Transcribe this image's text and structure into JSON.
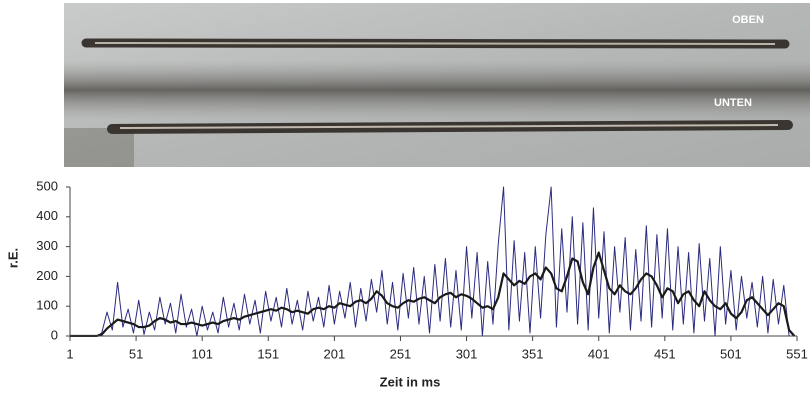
{
  "photo": {
    "labels": [
      "OBEN",
      "UNTEN"
    ]
  },
  "chart_data": {
    "type": "line",
    "xlabel": "Zeit in ms",
    "ylabel": "r.E.",
    "x": [
      1,
      5,
      9,
      13,
      17,
      21,
      25,
      29,
      33,
      37,
      41,
      45,
      49,
      53,
      57,
      61,
      65,
      69,
      73,
      77,
      81,
      85,
      89,
      93,
      97,
      101,
      105,
      109,
      113,
      117,
      121,
      125,
      129,
      133,
      137,
      141,
      145,
      149,
      153,
      157,
      161,
      165,
      169,
      173,
      177,
      181,
      185,
      189,
      193,
      197,
      201,
      205,
      209,
      213,
      217,
      221,
      225,
      229,
      233,
      237,
      241,
      245,
      249,
      253,
      257,
      261,
      265,
      269,
      273,
      277,
      281,
      285,
      289,
      293,
      297,
      301,
      305,
      309,
      313,
      317,
      321,
      325,
      329,
      333,
      337,
      341,
      345,
      349,
      353,
      357,
      361,
      365,
      369,
      373,
      377,
      381,
      385,
      389,
      393,
      397,
      401,
      405,
      409,
      413,
      417,
      421,
      425,
      429,
      433,
      437,
      441,
      445,
      449,
      453,
      457,
      461,
      465,
      469,
      473,
      477,
      481,
      485,
      489,
      493,
      497,
      501,
      505,
      509,
      513,
      517,
      521,
      525,
      529,
      533,
      537,
      541,
      545,
      549
    ],
    "series": [
      {
        "color": "#2b2b80",
        "values": [
          0,
          0,
          0,
          0,
          0,
          0,
          10,
          80,
          20,
          180,
          30,
          90,
          10,
          120,
          5,
          80,
          20,
          130,
          40,
          110,
          10,
          140,
          30,
          90,
          0,
          100,
          20,
          80,
          10,
          130,
          30,
          110,
          20,
          140,
          40,
          120,
          10,
          150,
          50,
          130,
          30,
          160,
          40,
          120,
          20,
          150,
          50,
          130,
          30,
          170,
          40,
          150,
          60,
          180,
          30,
          160,
          50,
          190,
          80,
          220,
          40,
          180,
          20,
          210,
          60,
          230,
          40,
          200,
          10,
          240,
          50,
          260,
          30,
          220,
          20,
          300,
          60,
          280,
          0,
          250,
          40,
          310,
          500,
          20,
          320,
          50,
          280,
          10,
          300,
          60,
          340,
          500,
          30,
          360,
          80,
          400,
          40,
          380,
          20,
          430,
          60,
          350,
          10,
          300,
          80,
          330,
          20,
          290,
          50,
          370,
          30,
          340,
          60,
          360,
          20,
          300,
          40,
          280,
          10,
          310,
          50,
          260,
          0,
          300,
          40,
          220,
          20,
          200,
          60,
          180,
          30,
          200,
          10,
          190,
          40,
          170,
          0,
          0
        ]
      },
      {
        "color": "#1a1a1a",
        "values": [
          0,
          0,
          0,
          0,
          0,
          0,
          5,
          25,
          40,
          55,
          50,
          45,
          40,
          30,
          30,
          35,
          50,
          60,
          55,
          45,
          50,
          40,
          40,
          45,
          40,
          35,
          40,
          45,
          40,
          50,
          55,
          60,
          55,
          65,
          70,
          75,
          80,
          85,
          90,
          85,
          95,
          90,
          80,
          85,
          80,
          75,
          90,
          95,
          90,
          100,
          95,
          110,
          105,
          100,
          115,
          120,
          110,
          125,
          150,
          135,
          110,
          100,
          95,
          110,
          120,
          115,
          125,
          130,
          120,
          110,
          130,
          140,
          145,
          130,
          140,
          135,
          125,
          110,
          95,
          100,
          90,
          130,
          210,
          190,
          170,
          185,
          175,
          200,
          210,
          190,
          230,
          210,
          160,
          150,
          200,
          260,
          250,
          180,
          140,
          230,
          280,
          220,
          160,
          140,
          170,
          150,
          140,
          160,
          190,
          210,
          200,
          170,
          130,
          160,
          150,
          110,
          140,
          150,
          120,
          100,
          150,
          120,
          100,
          90,
          110,
          75,
          60,
          80,
          120,
          130,
          110,
          90,
          70,
          90,
          110,
          100,
          20,
          0
        ]
      }
    ],
    "xlim": [
      1,
      551
    ],
    "xticks": [
      1,
      51,
      101,
      151,
      201,
      251,
      301,
      351,
      401,
      451,
      501,
      551
    ],
    "ylim": [
      0,
      500
    ],
    "yticks": [
      0,
      100,
      200,
      300,
      400,
      500
    ],
    "grid": false
  }
}
